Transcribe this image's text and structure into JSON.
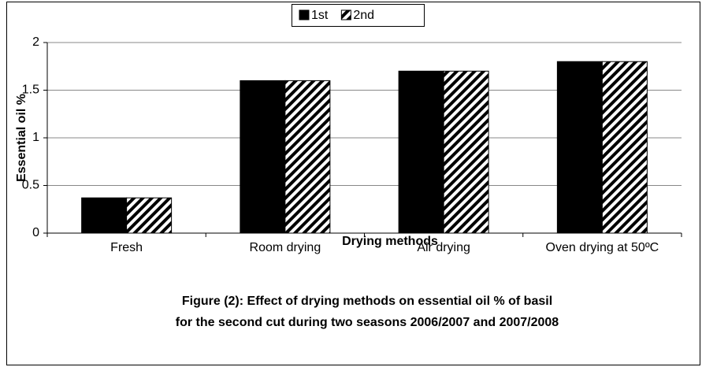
{
  "chart_data": {
    "type": "bar",
    "categories": [
      "Fresh",
      "Room drying",
      "Air drying",
      "Oven drying at 50ºC"
    ],
    "series": [
      {
        "name": "1st",
        "color": "#000000",
        "values": [
          0.37,
          1.6,
          1.7,
          1.8
        ]
      },
      {
        "name": "2nd",
        "color": "#000000",
        "pattern": "hatch",
        "values": [
          0.37,
          1.6,
          1.7,
          1.8
        ]
      }
    ],
    "ylim": [
      0,
      2
    ],
    "yticks": [
      0,
      0.5,
      1,
      1.5,
      2
    ],
    "grid": true,
    "legend": "top",
    "y_label": "Essential oil %",
    "x_label": "Drying methods",
    "caption": [
      "Figure (2): Effect of drying methods on essential oil % of basil",
      "for the second cut during two seasons 2006/2007 and 2007/2008"
    ]
  }
}
